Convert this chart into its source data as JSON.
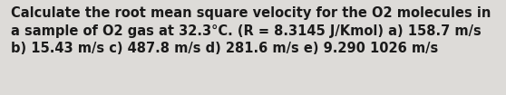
{
  "line1": "Calculate the root mean square velocity for the O2 molecules in",
  "line2": "a sample of O2 gas at 32.3°C. (R = 8.3145 J/Kmol) a) 158.7 m/s",
  "line3": "b) 15.43 m/s c) 487.8 m/s d) 281.6 m/s e) 9.290 1026 m/s",
  "background_color": "#dddbd8",
  "text_color": "#1a1a1a",
  "font_size": 10.5,
  "fig_width": 5.58,
  "fig_height": 1.05,
  "dpi": 100,
  "font_weight": "bold"
}
